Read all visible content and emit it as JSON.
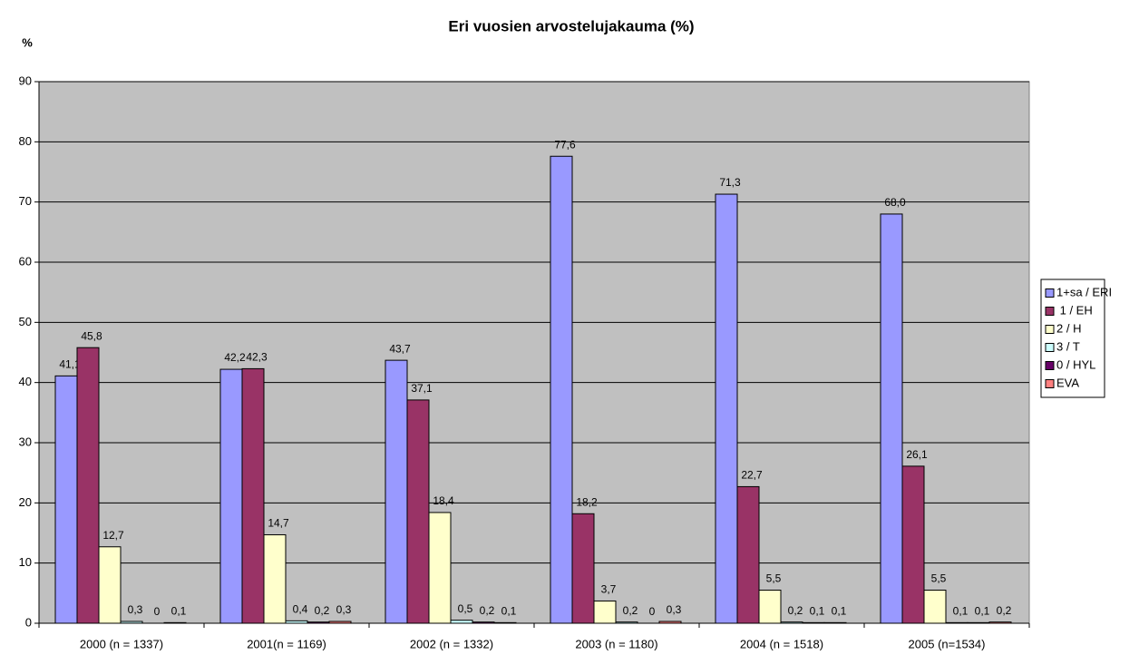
{
  "chart_data": {
    "type": "bar",
    "title": "Eri vuosien arvostelujakauma (%)",
    "y_label": "%",
    "categories": [
      "2000 (n = 1337)",
      "2001(n = 1169)",
      "2002 (n = 1332)",
      "2003 (n = 1180)",
      "2004 (n = 1518)",
      "2005 (n=1534)"
    ],
    "series": [
      {
        "name": "1+sa / ERI",
        "color": "#9999ff",
        "values": [
          41.1,
          42.2,
          43.7,
          77.6,
          71.3,
          68.0
        ],
        "value_labels": [
          "41,1",
          "42,2",
          "43,7",
          "77,6",
          "71,3",
          "68,0"
        ]
      },
      {
        "name": " 1 / EH",
        "color": "#993366",
        "values": [
          45.8,
          42.3,
          37.1,
          18.2,
          22.7,
          26.1
        ],
        "value_labels": [
          "45,8",
          "42,3",
          "37,1",
          "18,2",
          "22,7",
          "26,1"
        ]
      },
      {
        "name": "2 / H",
        "color": "#ffffcc",
        "values": [
          12.7,
          14.7,
          18.4,
          3.7,
          5.5,
          5.5
        ],
        "value_labels": [
          "12,7",
          "14,7",
          "18,4",
          "3,7",
          "5,5",
          "5,5"
        ]
      },
      {
        "name": "3 / T",
        "color": "#ccffff",
        "values": [
          0.3,
          0.4,
          0.5,
          0.2,
          0.2,
          0.1
        ],
        "value_labels": [
          "0,3",
          "0,4",
          "0,5",
          "0,2",
          "0,2",
          "0,1"
        ]
      },
      {
        "name": "0 / HYL",
        "color": "#660066",
        "values": [
          0,
          0.2,
          0.2,
          0,
          0.1,
          0.1
        ],
        "value_labels": [
          "0",
          "0,2",
          "0,2",
          "0",
          "0,1",
          "0,1"
        ]
      },
      {
        "name": "EVA",
        "color": "#ff8080",
        "values": [
          0.1,
          0.3,
          0.1,
          0.3,
          0.1,
          0.2
        ],
        "value_labels": [
          "0,1",
          "0,3",
          "0,1",
          "0,3",
          "0,1",
          "0,2"
        ]
      }
    ],
    "ylim": [
      0,
      90
    ],
    "yticks": [
      0,
      10,
      20,
      30,
      40,
      50,
      60,
      70,
      80,
      90
    ],
    "grid": true,
    "legend": "right",
    "plot_background": "#c0c0c0"
  }
}
